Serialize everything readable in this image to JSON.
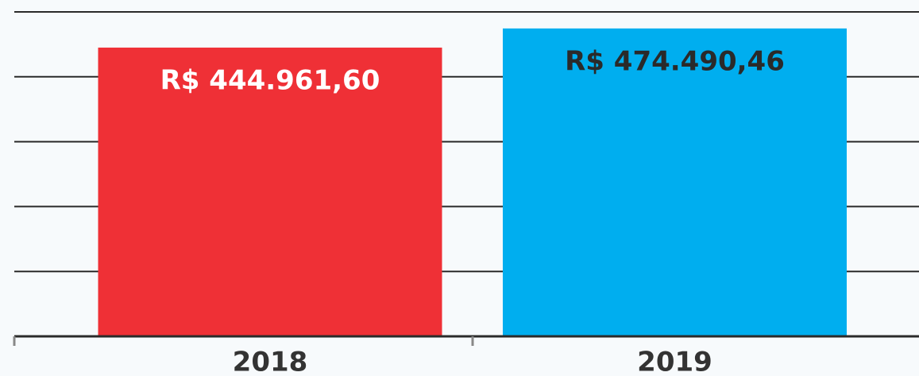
{
  "chart_data": {
    "type": "bar",
    "categories": [
      "2018",
      "2019"
    ],
    "values": [
      444961.6,
      474490.46
    ],
    "value_labels": [
      "R$ 444.961,60",
      "R$ 474.490,46"
    ],
    "colors": [
      "#ef3036",
      "#00aeef"
    ],
    "label_colors": [
      "#ffffff",
      "#2a2a2a"
    ],
    "ylim": [
      0,
      500000
    ],
    "yticks": [
      0,
      100000,
      200000,
      300000,
      400000,
      500000
    ],
    "grid": true
  }
}
